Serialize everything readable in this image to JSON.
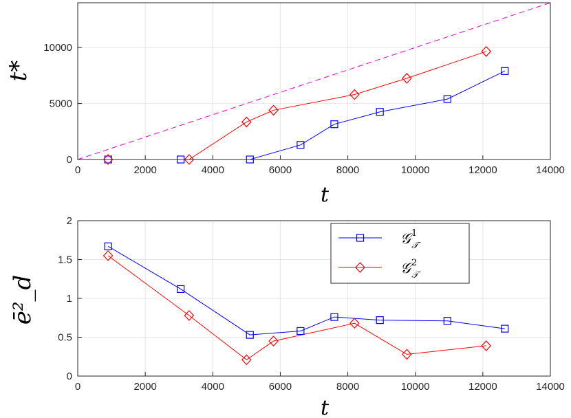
{
  "chart_data": [
    {
      "type": "line",
      "xlabel": "t",
      "ylabel": "t*",
      "xlim": [
        0,
        14000
      ],
      "ylim": [
        0,
        14000
      ],
      "xticks": [
        0,
        2000,
        4000,
        6000,
        8000,
        10000,
        12000,
        14000
      ],
      "yticks": [
        0,
        5000,
        10000
      ],
      "grid": true,
      "series": [
        {
          "key": "g1",
          "color": "#0000ff",
          "marker": "square",
          "x": [
            900,
            3050,
            5100,
            6600,
            7600,
            8950,
            10950,
            12650
          ],
          "y": [
            0,
            0,
            0,
            1300,
            3150,
            4250,
            5400,
            7900
          ]
        },
        {
          "key": "g2",
          "color": "#ff0000",
          "marker": "diamond",
          "x": [
            900,
            3300,
            5000,
            5800,
            8200,
            9750,
            12100
          ],
          "y": [
            0,
            0,
            3350,
            4400,
            5800,
            7250,
            9650
          ]
        },
        {
          "key": "diag",
          "color": "#e000e0",
          "marker": "none",
          "dashed": true,
          "x": [
            0,
            14000
          ],
          "y": [
            0,
            14000
          ]
        }
      ]
    },
    {
      "type": "line",
      "xlabel": "t",
      "ylabel": "ē²_d",
      "xlim": [
        0,
        14000
      ],
      "ylim": [
        0,
        2
      ],
      "xticks": [
        0,
        2000,
        4000,
        6000,
        8000,
        10000,
        12000,
        14000
      ],
      "yticks": [
        0,
        0.5,
        1,
        1.5,
        2
      ],
      "grid": true,
      "legend": "top-right",
      "series": [
        {
          "key": "g1",
          "name": "𝒢¹𝒯",
          "color": "#0000ff",
          "marker": "square",
          "x": [
            900,
            3050,
            5100,
            6600,
            7600,
            8950,
            10950,
            12650
          ],
          "y": [
            1.67,
            1.12,
            0.53,
            0.58,
            0.76,
            0.72,
            0.71,
            0.61
          ]
        },
        {
          "key": "g2",
          "name": "𝒢²𝒯",
          "color": "#ff0000",
          "marker": "diamond",
          "x": [
            900,
            3300,
            5000,
            5800,
            8200,
            9750,
            12100
          ],
          "y": [
            1.55,
            0.78,
            0.21,
            0.45,
            0.68,
            0.28,
            0.39
          ]
        }
      ]
    }
  ],
  "legend": {
    "g1_base": "𝒢",
    "g1_sup": "1",
    "g1_sub": "𝒯",
    "g2_base": "𝒢",
    "g2_sup": "2",
    "g2_sub": "𝒯"
  }
}
